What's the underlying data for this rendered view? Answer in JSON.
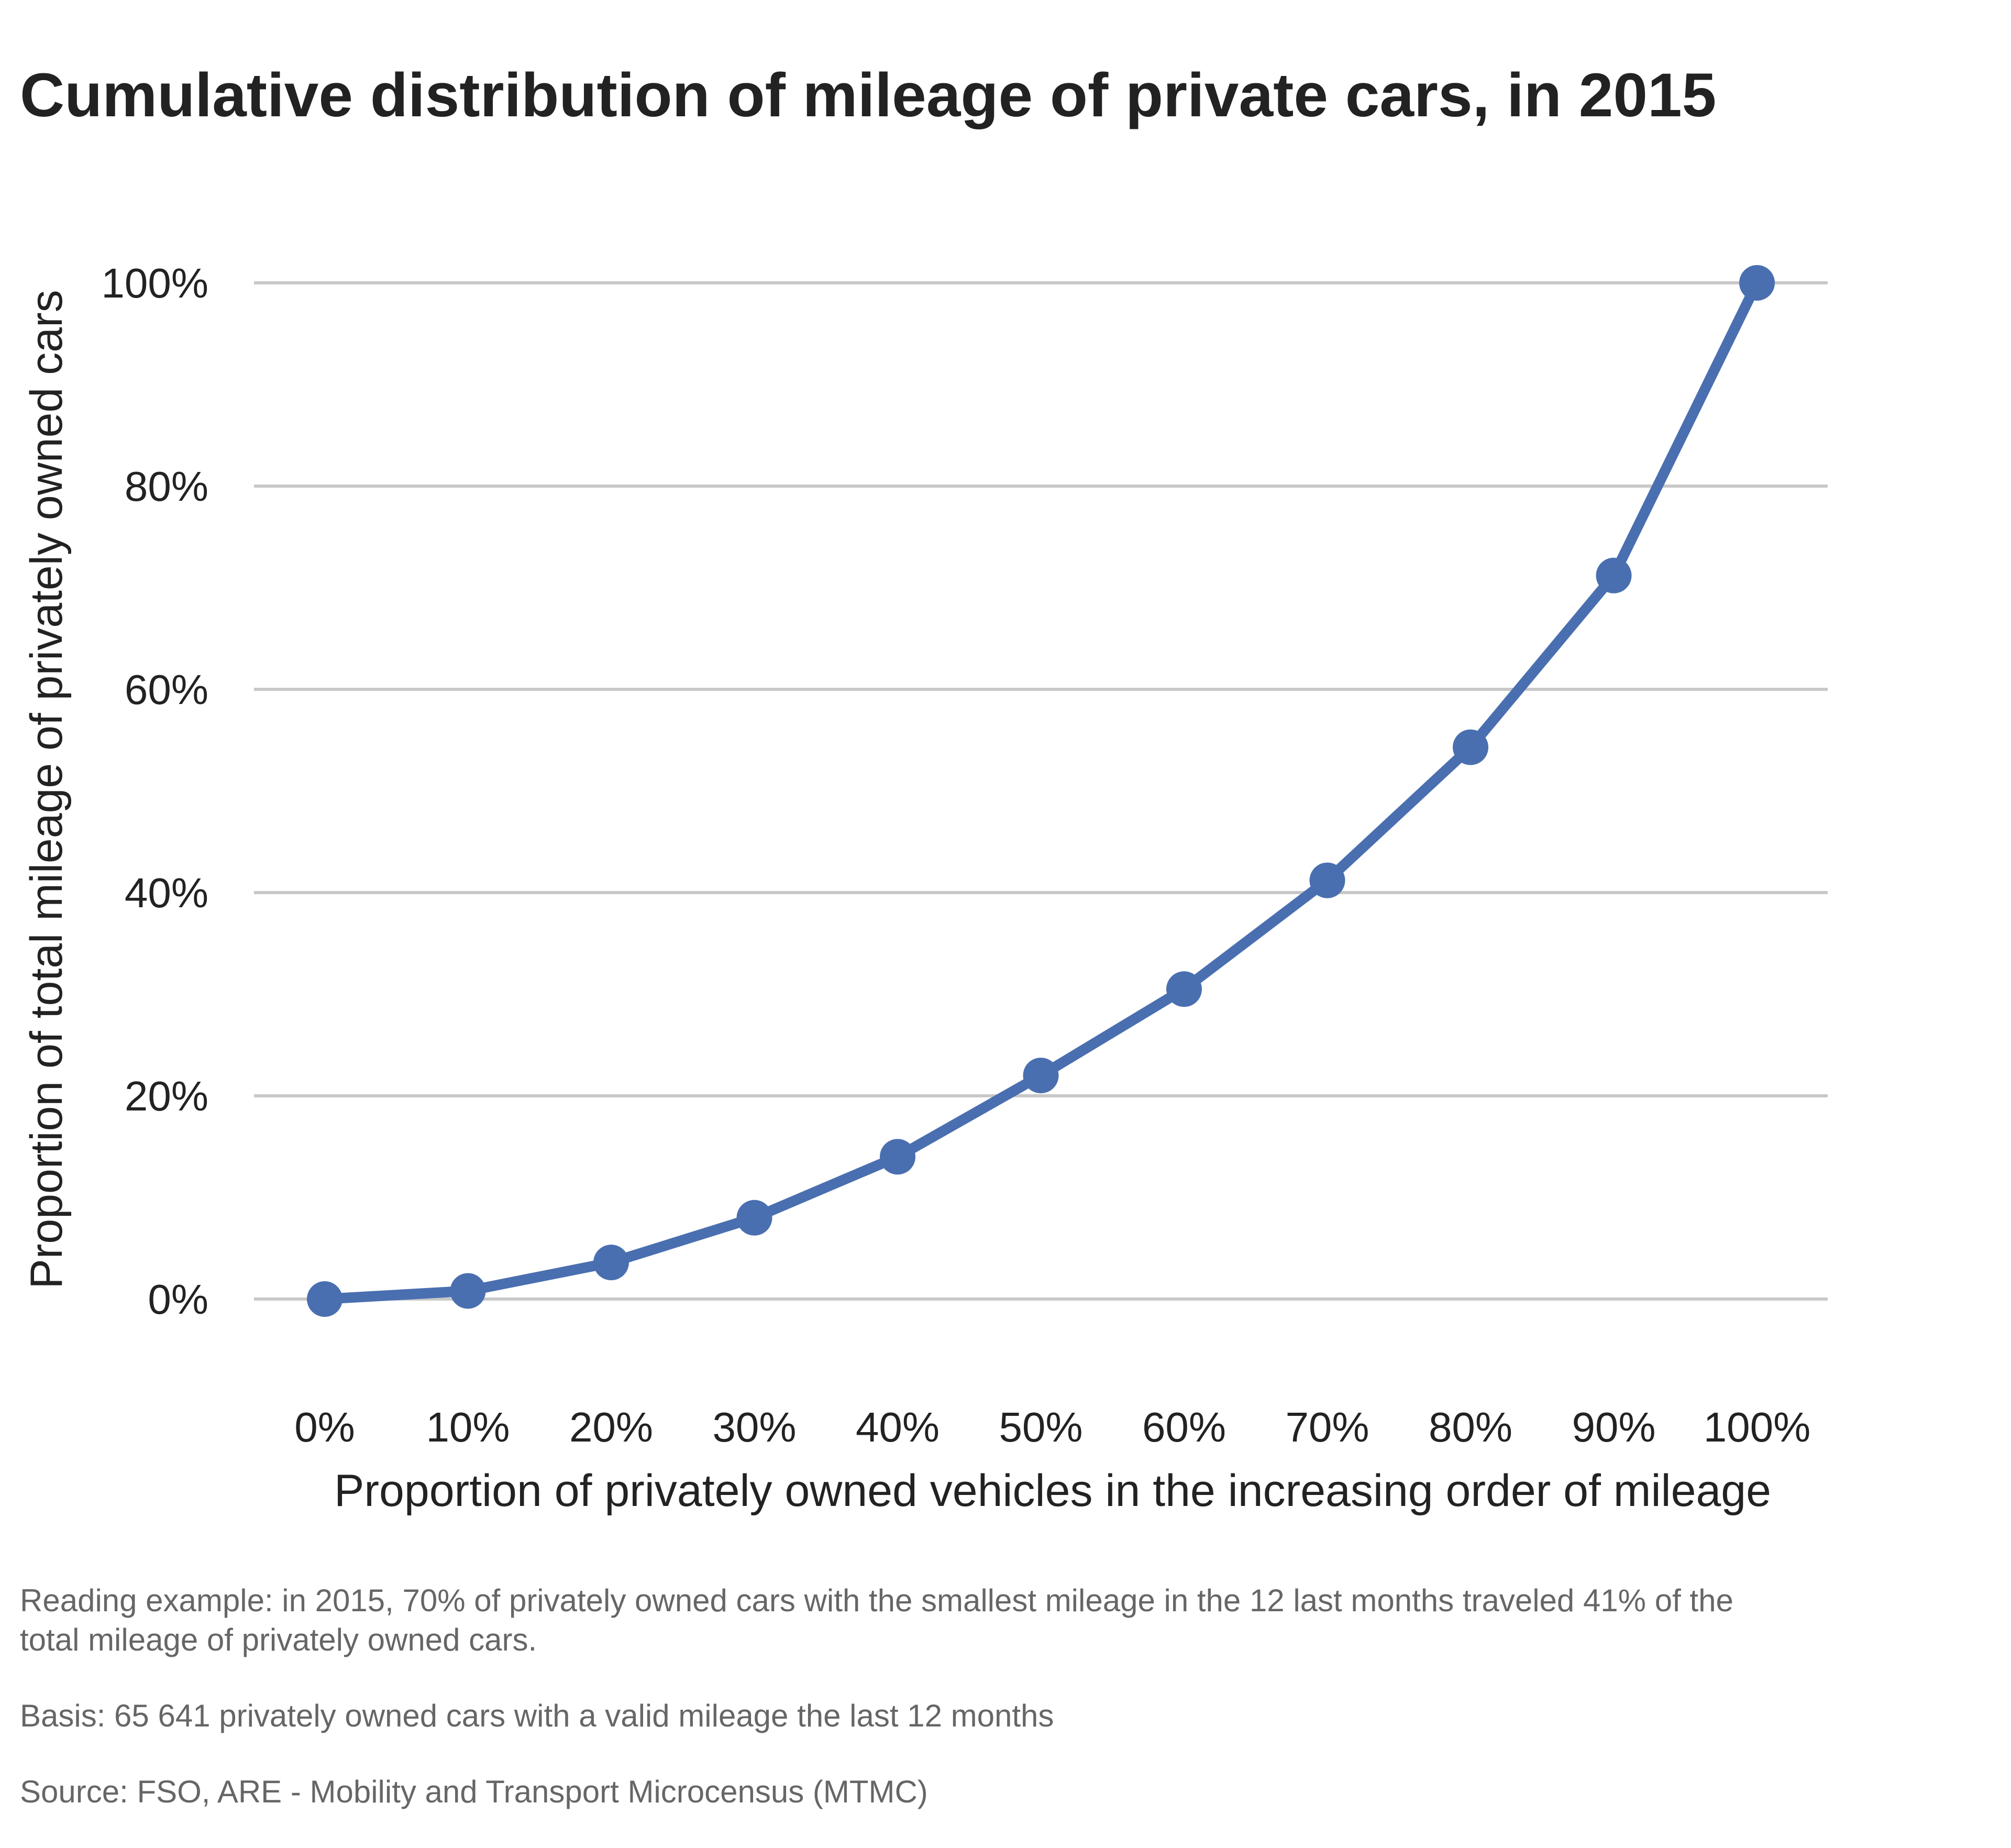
{
  "chart_data": {
    "type": "line",
    "title": "Cumulative distribution of mileage of private cars, in 2015",
    "xlabel": "Proportion of privately owned vehicles in the increasing order of mileage",
    "ylabel": "Proportion of total mileage of privately owned cars",
    "x": [
      0,
      10,
      20,
      30,
      40,
      50,
      60,
      70,
      80,
      90,
      100
    ],
    "x_tick_labels": [
      "0%",
      "10%",
      "20%",
      "30%",
      "40%",
      "50%",
      "60%",
      "70%",
      "80%",
      "90%",
      "100%"
    ],
    "y_ticks": [
      0,
      20,
      40,
      60,
      80,
      100
    ],
    "y_tick_labels": [
      "0%",
      "20%",
      "40%",
      "60%",
      "80%",
      "100%"
    ],
    "ylim": [
      -8,
      108
    ],
    "xlim": [
      0,
      100
    ],
    "grid": true,
    "legend": "none",
    "series": [
      {
        "values": [
          0,
          0.8,
          3.6,
          8.0,
          14.0,
          22.0,
          30.5,
          41.2,
          54.3,
          71.2,
          100
        ],
        "color": "#4a6fb0"
      }
    ]
  },
  "notes": {
    "reading_example": "Reading example: in 2015, 70% of privately owned cars with the smallest mileage in the 12 last months traveled 41% of the total mileage of privately owned cars.",
    "basis": "Basis: 65 641 privately owned cars with a valid mileage the last 12 months",
    "source": "Source: FSO, ARE - Mobility and Transport Microcensus (MTMC)"
  }
}
